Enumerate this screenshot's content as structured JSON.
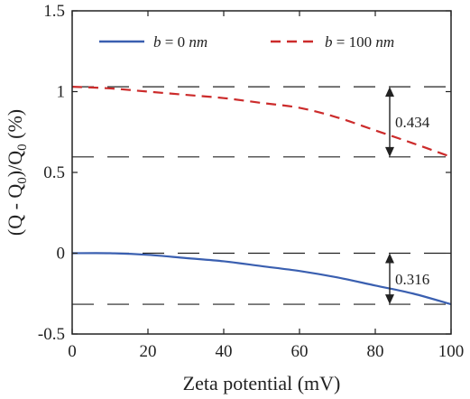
{
  "chart_data": {
    "type": "line",
    "xlabel": "Zeta potential (mV)",
    "ylabel_parts": {
      "open": "(Q - Q",
      "sub1": "0",
      "mid": ")/Q",
      "sub2": "0",
      "close": " (%)"
    },
    "xlim": [
      0,
      100
    ],
    "ylim": [
      -0.5,
      1.5
    ],
    "x_ticks": [
      0,
      20,
      40,
      60,
      80,
      100
    ],
    "y_ticks": [
      -0.5,
      0,
      0.5,
      1,
      1.5
    ],
    "grid": false,
    "legend_position": "top",
    "series": [
      {
        "name_var": "b",
        "name_rest": " = 0 ",
        "name_unit": "nm",
        "color": "#3a5fb0",
        "dash": "solid",
        "x": [
          0,
          10,
          20,
          30,
          40,
          50,
          60,
          70,
          80,
          90,
          100
        ],
        "y": [
          0.0,
          0.0,
          -0.01,
          -0.03,
          -0.05,
          -0.08,
          -0.11,
          -0.15,
          -0.2,
          -0.25,
          -0.316
        ]
      },
      {
        "name_var": "b",
        "name_rest": " = 100 ",
        "name_unit": "nm",
        "color": "#cc2b2b",
        "dash": "dashed",
        "x": [
          0,
          10,
          20,
          30,
          40,
          50,
          60,
          70,
          80,
          90,
          100
        ],
        "y": [
          1.03,
          1.02,
          1.0,
          0.98,
          0.96,
          0.93,
          0.9,
          0.84,
          0.76,
          0.68,
          0.596
        ]
      }
    ],
    "annotations": [
      {
        "text": "0.434",
        "y_top": 1.03,
        "y_bottom": 0.596
      },
      {
        "text": "0.316",
        "y_top": 0.0,
        "y_bottom": -0.316
      }
    ]
  }
}
